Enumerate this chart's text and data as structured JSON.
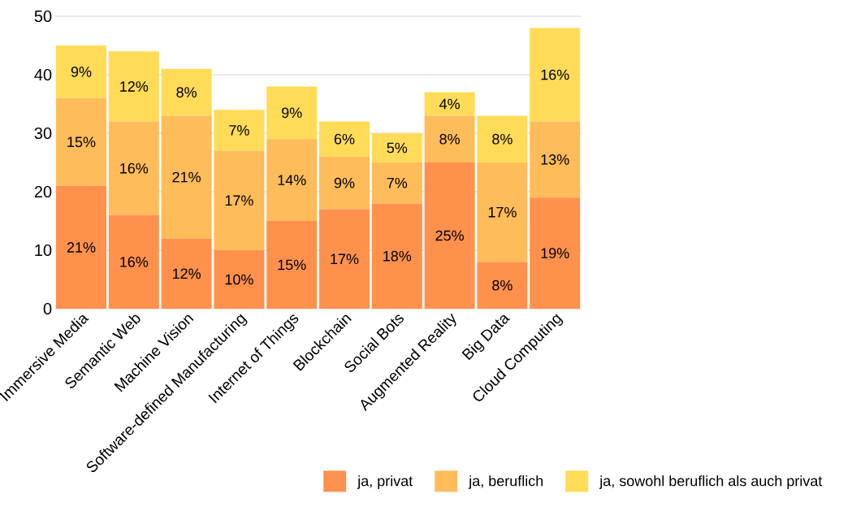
{
  "chart_data": {
    "type": "bar",
    "stacked": true,
    "categories": [
      "Immersive Media",
      "Semantic Web",
      "Machine Vision",
      "Software-defined Manufacturing",
      "Internet of Things",
      "Blockchain",
      "Social Bots",
      "Augmented Reality",
      "Big Data",
      "Cloud Computing"
    ],
    "series": [
      {
        "name": "ja, privat",
        "color": "#ff914d",
        "values": [
          21,
          16,
          12,
          10,
          15,
          17,
          18,
          25,
          8,
          19
        ],
        "value_labels": [
          "21%",
          "16%",
          "12%",
          "10%",
          "15%",
          "17%",
          "18%",
          "25%",
          "8%",
          "19%"
        ]
      },
      {
        "name": "ja, beruflich",
        "color": "#ffbc5a",
        "values": [
          15,
          16,
          21,
          17,
          14,
          9,
          7,
          8,
          17,
          13
        ],
        "value_labels": [
          "15%",
          "16%",
          "21%",
          "17%",
          "14%",
          "9%",
          "7%",
          "8%",
          "17%",
          "13%"
        ]
      },
      {
        "name": "ja, sowohl beruflich als auch privat",
        "color": "#ffdb58",
        "values": [
          9,
          12,
          8,
          7,
          9,
          6,
          5,
          4,
          8,
          16
        ],
        "value_labels": [
          "9%",
          "12%",
          "8%",
          "7%",
          "9%",
          "6%",
          "5%",
          "4%",
          "8%",
          "16%"
        ]
      }
    ],
    "ylim": [
      0,
      50
    ],
    "yticks": [
      0,
      10,
      20,
      30,
      40,
      50
    ],
    "grid": "y",
    "legend": "bottom right"
  }
}
